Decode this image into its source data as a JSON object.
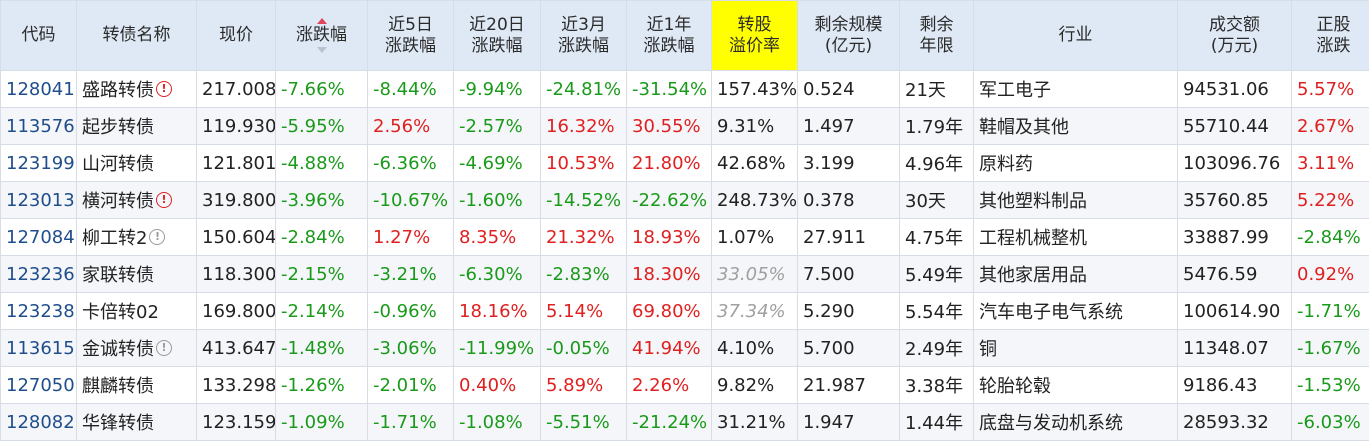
{
  "headers": [
    [
      "代码"
    ],
    [
      "转债名称"
    ],
    [
      "现价"
    ],
    [
      "涨跌幅"
    ],
    [
      "近5日",
      "涨跌幅"
    ],
    [
      "近20日",
      "涨跌幅"
    ],
    [
      "近3月",
      "涨跌幅"
    ],
    [
      "近1年",
      "涨跌幅"
    ],
    [
      "转股",
      "溢价率"
    ],
    [
      "剩余规模",
      "(亿元)"
    ],
    [
      "剩余",
      "年限"
    ],
    [
      "行业"
    ],
    [
      "成交额",
      "(万元)"
    ],
    [
      "正股",
      "涨跌"
    ]
  ],
  "highlight_color": "#ffff00",
  "up_color": "#e02020",
  "down_color": "#1a9a1a",
  "rows": [
    {
      "code": "128041",
      "name": "盛路转债",
      "warn": "red",
      "price": "217.008",
      "chg": "-7.66%",
      "d5": "-8.44%",
      "d20": "-9.94%",
      "m3": "-24.81%",
      "y1": "-31.54%",
      "premium": "157.43%",
      "premium_style": "neutral",
      "scale": "0.524",
      "term": "21天",
      "industry": "军工电子",
      "amount": "94531.06",
      "stock": "5.57%"
    },
    {
      "code": "113576",
      "name": "起步转债",
      "warn": "",
      "price": "119.930",
      "chg": "-5.95%",
      "d5": "2.56%",
      "d20": "-2.57%",
      "m3": "16.32%",
      "y1": "30.55%",
      "premium": "9.31%",
      "premium_style": "neutral",
      "scale": "1.497",
      "term": "1.79年",
      "industry": "鞋帽及其他",
      "amount": "55710.44",
      "stock": "2.67%"
    },
    {
      "code": "123199",
      "name": "山河转债",
      "warn": "",
      "price": "121.801",
      "chg": "-4.88%",
      "d5": "-6.36%",
      "d20": "-4.69%",
      "m3": "10.53%",
      "y1": "21.80%",
      "premium": "42.68%",
      "premium_style": "neutral",
      "scale": "3.199",
      "term": "4.96年",
      "industry": "原料药",
      "amount": "103096.76",
      "stock": "3.11%"
    },
    {
      "code": "123013",
      "name": "横河转债",
      "warn": "red",
      "price": "319.800",
      "chg": "-3.96%",
      "d5": "-10.67%",
      "d20": "-1.60%",
      "m3": "-14.52%",
      "y1": "-22.62%",
      "premium": "248.73%",
      "premium_style": "neutral",
      "scale": "0.378",
      "term": "30天",
      "industry": "其他塑料制品",
      "amount": "35760.85",
      "stock": "5.22%"
    },
    {
      "code": "127084",
      "name": "柳工转2",
      "warn": "gray",
      "price": "150.604",
      "chg": "-2.84%",
      "d5": "1.27%",
      "d20": "8.35%",
      "m3": "21.32%",
      "y1": "18.93%",
      "premium": "1.07%",
      "premium_style": "neutral",
      "scale": "27.911",
      "term": "4.75年",
      "industry": "工程机械整机",
      "amount": "33887.99",
      "stock": "-2.84%"
    },
    {
      "code": "123236",
      "name": "家联转债",
      "warn": "",
      "price": "118.300",
      "chg": "-2.15%",
      "d5": "-3.21%",
      "d20": "-6.30%",
      "m3": "-2.83%",
      "y1": "18.30%",
      "premium": "33.05%",
      "premium_style": "italic-gray",
      "scale": "7.500",
      "term": "5.49年",
      "industry": "其他家居用品",
      "amount": "5476.59",
      "stock": "0.92%"
    },
    {
      "code": "123238",
      "name": "卡倍转02",
      "warn": "",
      "price": "169.800",
      "chg": "-2.14%",
      "d5": "-0.96%",
      "d20": "18.16%",
      "m3": "5.14%",
      "y1": "69.80%",
      "premium": "37.34%",
      "premium_style": "italic-gray",
      "scale": "5.290",
      "term": "5.54年",
      "industry": "汽车电子电气系统",
      "amount": "100614.90",
      "stock": "-1.71%"
    },
    {
      "code": "113615",
      "name": "金诚转债",
      "warn": "gray",
      "price": "413.647",
      "chg": "-1.48%",
      "d5": "-3.06%",
      "d20": "-11.99%",
      "m3": "-0.05%",
      "y1": "41.94%",
      "premium": "4.10%",
      "premium_style": "neutral",
      "scale": "5.700",
      "term": "2.49年",
      "industry": "铜",
      "amount": "11348.07",
      "stock": "-1.67%"
    },
    {
      "code": "127050",
      "name": "麒麟转债",
      "warn": "",
      "price": "133.298",
      "chg": "-1.26%",
      "d5": "-2.01%",
      "d20": "0.40%",
      "m3": "5.89%",
      "y1": "2.26%",
      "premium": "9.82%",
      "premium_style": "neutral",
      "scale": "21.987",
      "term": "3.38年",
      "industry": "轮胎轮毂",
      "amount": "9186.43",
      "stock": "-1.53%"
    },
    {
      "code": "128082",
      "name": "华锋转债",
      "warn": "",
      "price": "123.159",
      "chg": "-1.09%",
      "d5": "-1.71%",
      "d20": "-1.08%",
      "m3": "-5.51%",
      "y1": "-21.24%",
      "premium": "31.21%",
      "premium_style": "neutral",
      "scale": "1.947",
      "term": "1.44年",
      "industry": "底盘与发动机系统",
      "amount": "28593.32",
      "stock": "-6.03%"
    }
  ]
}
